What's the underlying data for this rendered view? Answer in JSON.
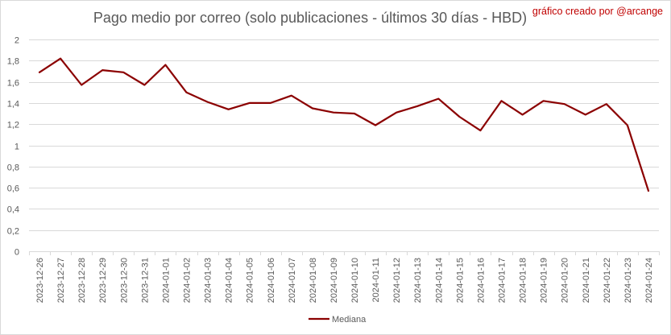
{
  "chart_data": {
    "type": "line",
    "title": "Pago medio por correo (solo publicaciones - últimos 30 días - HBD)",
    "credit": "gráfico creado por @arcange",
    "xlabel": "",
    "ylabel": "",
    "ylim": [
      0,
      2
    ],
    "ytick_step": 0.2,
    "yticks": [
      "0",
      "0,2",
      "0,4",
      "0,6",
      "0,8",
      "1",
      "1,2",
      "1,4",
      "1,6",
      "1,8",
      "2"
    ],
    "grid": true,
    "legend_position": "bottom",
    "categories": [
      "2023-12-26",
      "2023-12-27",
      "2023-12-28",
      "2023-12-29",
      "2023-12-30",
      "2023-12-31",
      "2024-01-01",
      "2024-01-02",
      "2024-01-03",
      "2024-01-04",
      "2024-01-05",
      "2024-01-06",
      "2024-01-07",
      "2024-01-08",
      "2024-01-09",
      "2024-01-10",
      "2024-01-11",
      "2024-01-12",
      "2024-01-13",
      "2024-01-14",
      "2024-01-15",
      "2024-01-16",
      "2024-01-17",
      "2024-01-18",
      "2024-01-19",
      "2024-01-20",
      "2024-01-21",
      "2024-01-22",
      "2024-01-23",
      "2024-01-24"
    ],
    "series": [
      {
        "name": "Mediana",
        "color": "#8b0000",
        "values": [
          1.69,
          1.82,
          1.57,
          1.71,
          1.69,
          1.57,
          1.76,
          1.5,
          1.41,
          1.34,
          1.4,
          1.4,
          1.47,
          1.35,
          1.31,
          1.3,
          1.19,
          1.31,
          1.37,
          1.44,
          1.27,
          1.14,
          1.42,
          1.29,
          1.42,
          1.39,
          1.29,
          1.39,
          1.19,
          0.57
        ]
      }
    ]
  }
}
